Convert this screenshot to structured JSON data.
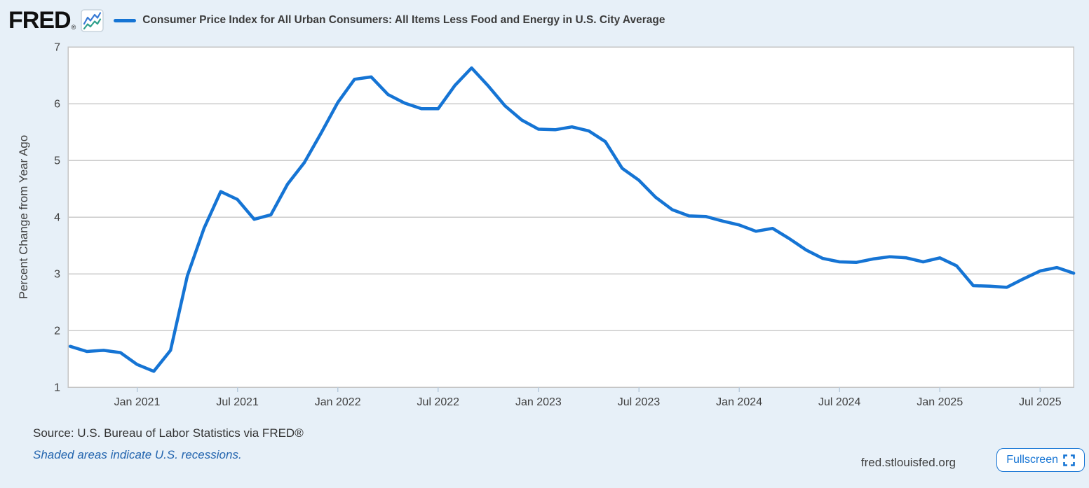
{
  "header": {
    "logo_text": "FRED",
    "logo_registered": "®"
  },
  "footer": {
    "source_text": "Source: U.S. Bureau of Labor Statistics via FRED®",
    "recession_note": "Shaded areas indicate U.S. recessions.",
    "site_text": "fred.stlouisfed.org",
    "fullscreen_label": "Fullscreen"
  },
  "colors": {
    "page_background": "#e7f0f8",
    "plot_background": "#ffffff",
    "series_line": "#1574d4",
    "gridline": "#cbcbcb",
    "link_blue": "#2264ae",
    "button_blue": "#1574d4",
    "text_dark": "#3b3b3b"
  },
  "chart_data": {
    "type": "line",
    "title": "Consumer Price Index for All Urban Consumers: All Items Less Food and Energy in U.S. City Average",
    "ylabel": "Percent Change from Year Ago",
    "xlabel": "",
    "units": "percent",
    "frequency": "monthly",
    "ylim": [
      1,
      7
    ],
    "yticks": [
      1,
      2,
      3,
      4,
      5,
      6,
      7
    ],
    "grid": "horizontal",
    "legend_position": "top",
    "xticks": [
      {
        "label": "Jan 2021",
        "month": "2021-01"
      },
      {
        "label": "Jul 2021",
        "month": "2021-07"
      },
      {
        "label": "Jan 2022",
        "month": "2022-01"
      },
      {
        "label": "Jul 2022",
        "month": "2022-07"
      },
      {
        "label": "Jan 2023",
        "month": "2023-01"
      },
      {
        "label": "Jul 2023",
        "month": "2023-07"
      },
      {
        "label": "Jan 2024",
        "month": "2024-01"
      },
      {
        "label": "Jul 2024",
        "month": "2024-07"
      },
      {
        "label": "Jan 2025",
        "month": "2025-01"
      },
      {
        "label": "Jul 2025",
        "month": "2025-07"
      }
    ],
    "series": [
      {
        "name": "Consumer Price Index for All Urban Consumers: All Items Less Food and Energy in U.S. City Average",
        "color": "#1574d4",
        "start_month": "2020-09",
        "end_month": "2025-09",
        "dates": [
          "2020-09",
          "2020-10",
          "2020-11",
          "2020-12",
          "2021-01",
          "2021-02",
          "2021-03",
          "2021-04",
          "2021-05",
          "2021-06",
          "2021-07",
          "2021-08",
          "2021-09",
          "2021-10",
          "2021-11",
          "2021-12",
          "2022-01",
          "2022-02",
          "2022-03",
          "2022-04",
          "2022-05",
          "2022-06",
          "2022-07",
          "2022-08",
          "2022-09",
          "2022-10",
          "2022-11",
          "2022-12",
          "2023-01",
          "2023-02",
          "2023-03",
          "2023-04",
          "2023-05",
          "2023-06",
          "2023-07",
          "2023-08",
          "2023-09",
          "2023-10",
          "2023-11",
          "2023-12",
          "2024-01",
          "2024-02",
          "2024-03",
          "2024-04",
          "2024-05",
          "2024-06",
          "2024-07",
          "2024-08",
          "2024-09",
          "2024-10",
          "2024-11",
          "2024-12",
          "2025-01",
          "2025-02",
          "2025-03",
          "2025-04",
          "2025-05",
          "2025-06",
          "2025-07",
          "2025-08",
          "2025-09"
        ],
        "values": [
          1.72,
          1.63,
          1.65,
          1.61,
          1.4,
          1.28,
          1.65,
          2.96,
          3.8,
          4.45,
          4.31,
          3.96,
          4.04,
          4.58,
          4.96,
          5.48,
          6.02,
          6.43,
          6.47,
          6.16,
          6.01,
          5.91,
          5.91,
          6.32,
          6.63,
          6.31,
          5.96,
          5.71,
          5.55,
          5.54,
          5.59,
          5.52,
          5.33,
          4.86,
          4.65,
          4.35,
          4.13,
          4.02,
          4.01,
          3.93,
          3.86,
          3.75,
          3.8,
          3.62,
          3.42,
          3.27,
          3.21,
          3.2,
          3.26,
          3.3,
          3.28,
          3.21,
          3.28,
          3.14,
          2.79,
          2.78,
          2.76,
          2.91,
          3.05,
          3.11,
          3.01
        ]
      }
    ]
  }
}
